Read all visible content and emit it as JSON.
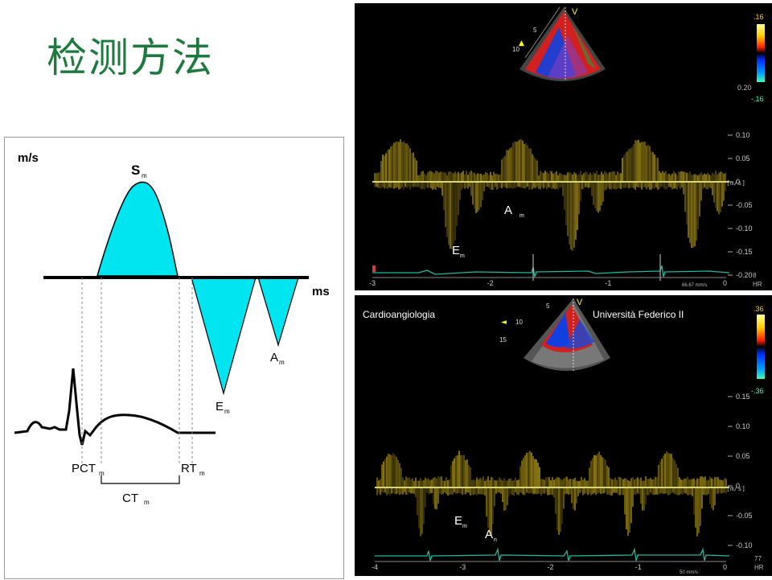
{
  "page": {
    "title": "检测方法"
  },
  "diagram": {
    "y_unit": "m/s",
    "x_unit": "ms",
    "waves": {
      "s": {
        "main": "S",
        "sub": "m"
      },
      "e": {
        "main": "E",
        "sub": "m"
      },
      "a": {
        "main": "A",
        "sub": "m"
      }
    },
    "intervals": {
      "pct": {
        "main": "PCT",
        "sub": "m"
      },
      "rt": {
        "main": "RT",
        "sub": "m"
      },
      "ct": {
        "main": "CT",
        "sub": "m"
      }
    },
    "colors": {
      "wave_fill": "#00e5f0",
      "line": "#000000",
      "title": "#1c7a3c"
    }
  },
  "echo_top": {
    "scale_ticks": [
      "0.10",
      "0.05",
      "0",
      "-0.05",
      "-0.10",
      "-0.15",
      "-0.20"
    ],
    "unit": "[m/s]",
    "color_bar": {
      "top": ".16",
      "bottom": "-.16"
    },
    "time_ticks": [
      "-3",
      "-2",
      "-1",
      "0"
    ],
    "hr": "HR",
    "hr_value": "8",
    "sweep": "66.67 mm/s",
    "labels": {
      "a": {
        "main": "A",
        "sub": "m"
      },
      "e": {
        "main": "E",
        "sub": "m"
      }
    },
    "depth_ticks": [
      "5",
      "10"
    ],
    "scale_top": "0.20"
  },
  "echo_bottom": {
    "institution_left": "Cardioangiologia",
    "institution_right": "Università Federico II",
    "scale_ticks": [
      "0.15",
      "0.10",
      "0.05",
      "0",
      "-0.05",
      "-0.10"
    ],
    "unit": "[m/s]",
    "color_bar": {
      "top": ".36",
      "bottom": "-.36"
    },
    "time_ticks": [
      "-4",
      "-3",
      "-2",
      "-1",
      "0"
    ],
    "hr": "HR",
    "hr_value": "77",
    "sweep": "50 mm/s",
    "labels": {
      "e": {
        "main": "E",
        "sub": "m"
      },
      "a": {
        "main": "A",
        "sub": "n"
      }
    },
    "depth_ticks": [
      "5",
      "10",
      "15"
    ]
  }
}
